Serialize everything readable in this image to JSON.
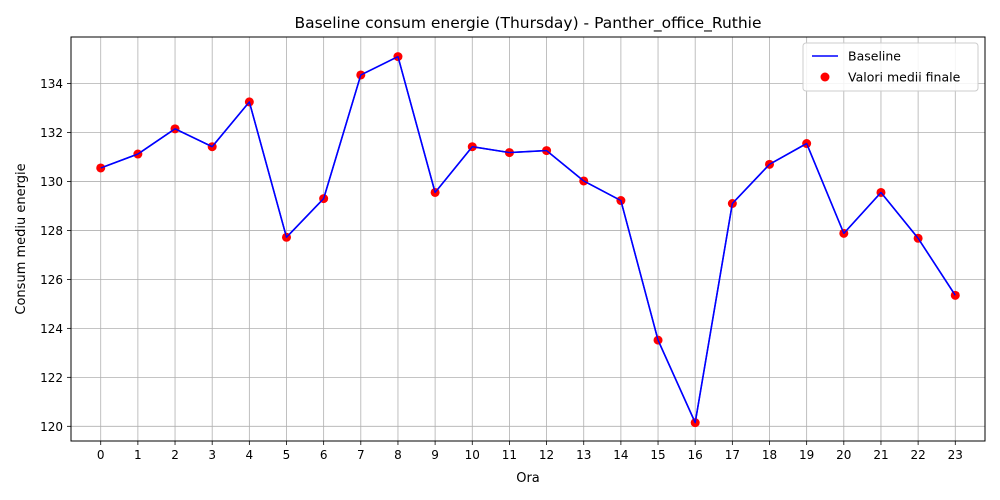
{
  "chart_data": {
    "type": "line",
    "title": "Baseline consum energie (Thursday) - Panther_office_Ruthie",
    "xlabel": "Ora",
    "ylabel": "Consum mediu energie",
    "x": [
      0,
      1,
      2,
      3,
      4,
      5,
      6,
      7,
      8,
      9,
      10,
      11,
      12,
      13,
      14,
      15,
      16,
      17,
      18,
      19,
      20,
      21,
      22,
      23
    ],
    "xticks": [
      "0",
      "1",
      "2",
      "3",
      "4",
      "5",
      "6",
      "7",
      "8",
      "9",
      "10",
      "11",
      "12",
      "13",
      "14",
      "15",
      "16",
      "17",
      "18",
      "19",
      "20",
      "21",
      "22",
      "23"
    ],
    "yticks": [
      "120",
      "122",
      "124",
      "126",
      "128",
      "130",
      "132",
      "134"
    ],
    "ylim": [
      119.4,
      135.9
    ],
    "xlim": [
      -0.8,
      23.8
    ],
    "grid": true,
    "legend_position": "top-right",
    "series": [
      {
        "name": "Baseline",
        "kind": "line",
        "color": "#0000ff",
        "values": [
          130.55,
          131.12,
          132.15,
          131.42,
          133.25,
          127.72,
          129.3,
          134.35,
          135.1,
          129.55,
          131.42,
          131.18,
          131.26,
          130.02,
          129.22,
          123.52,
          120.15,
          129.1,
          130.7,
          131.55,
          127.88,
          129.55,
          127.68,
          125.35
        ]
      },
      {
        "name": "Valori medii finale",
        "kind": "scatter",
        "color": "#ff0000",
        "values": [
          130.55,
          131.12,
          132.15,
          131.42,
          133.25,
          127.72,
          129.3,
          134.35,
          135.1,
          129.55,
          131.42,
          131.18,
          131.26,
          130.02,
          129.22,
          123.52,
          120.15,
          129.1,
          130.7,
          131.55,
          127.88,
          129.55,
          127.68,
          125.35
        ]
      }
    ]
  }
}
